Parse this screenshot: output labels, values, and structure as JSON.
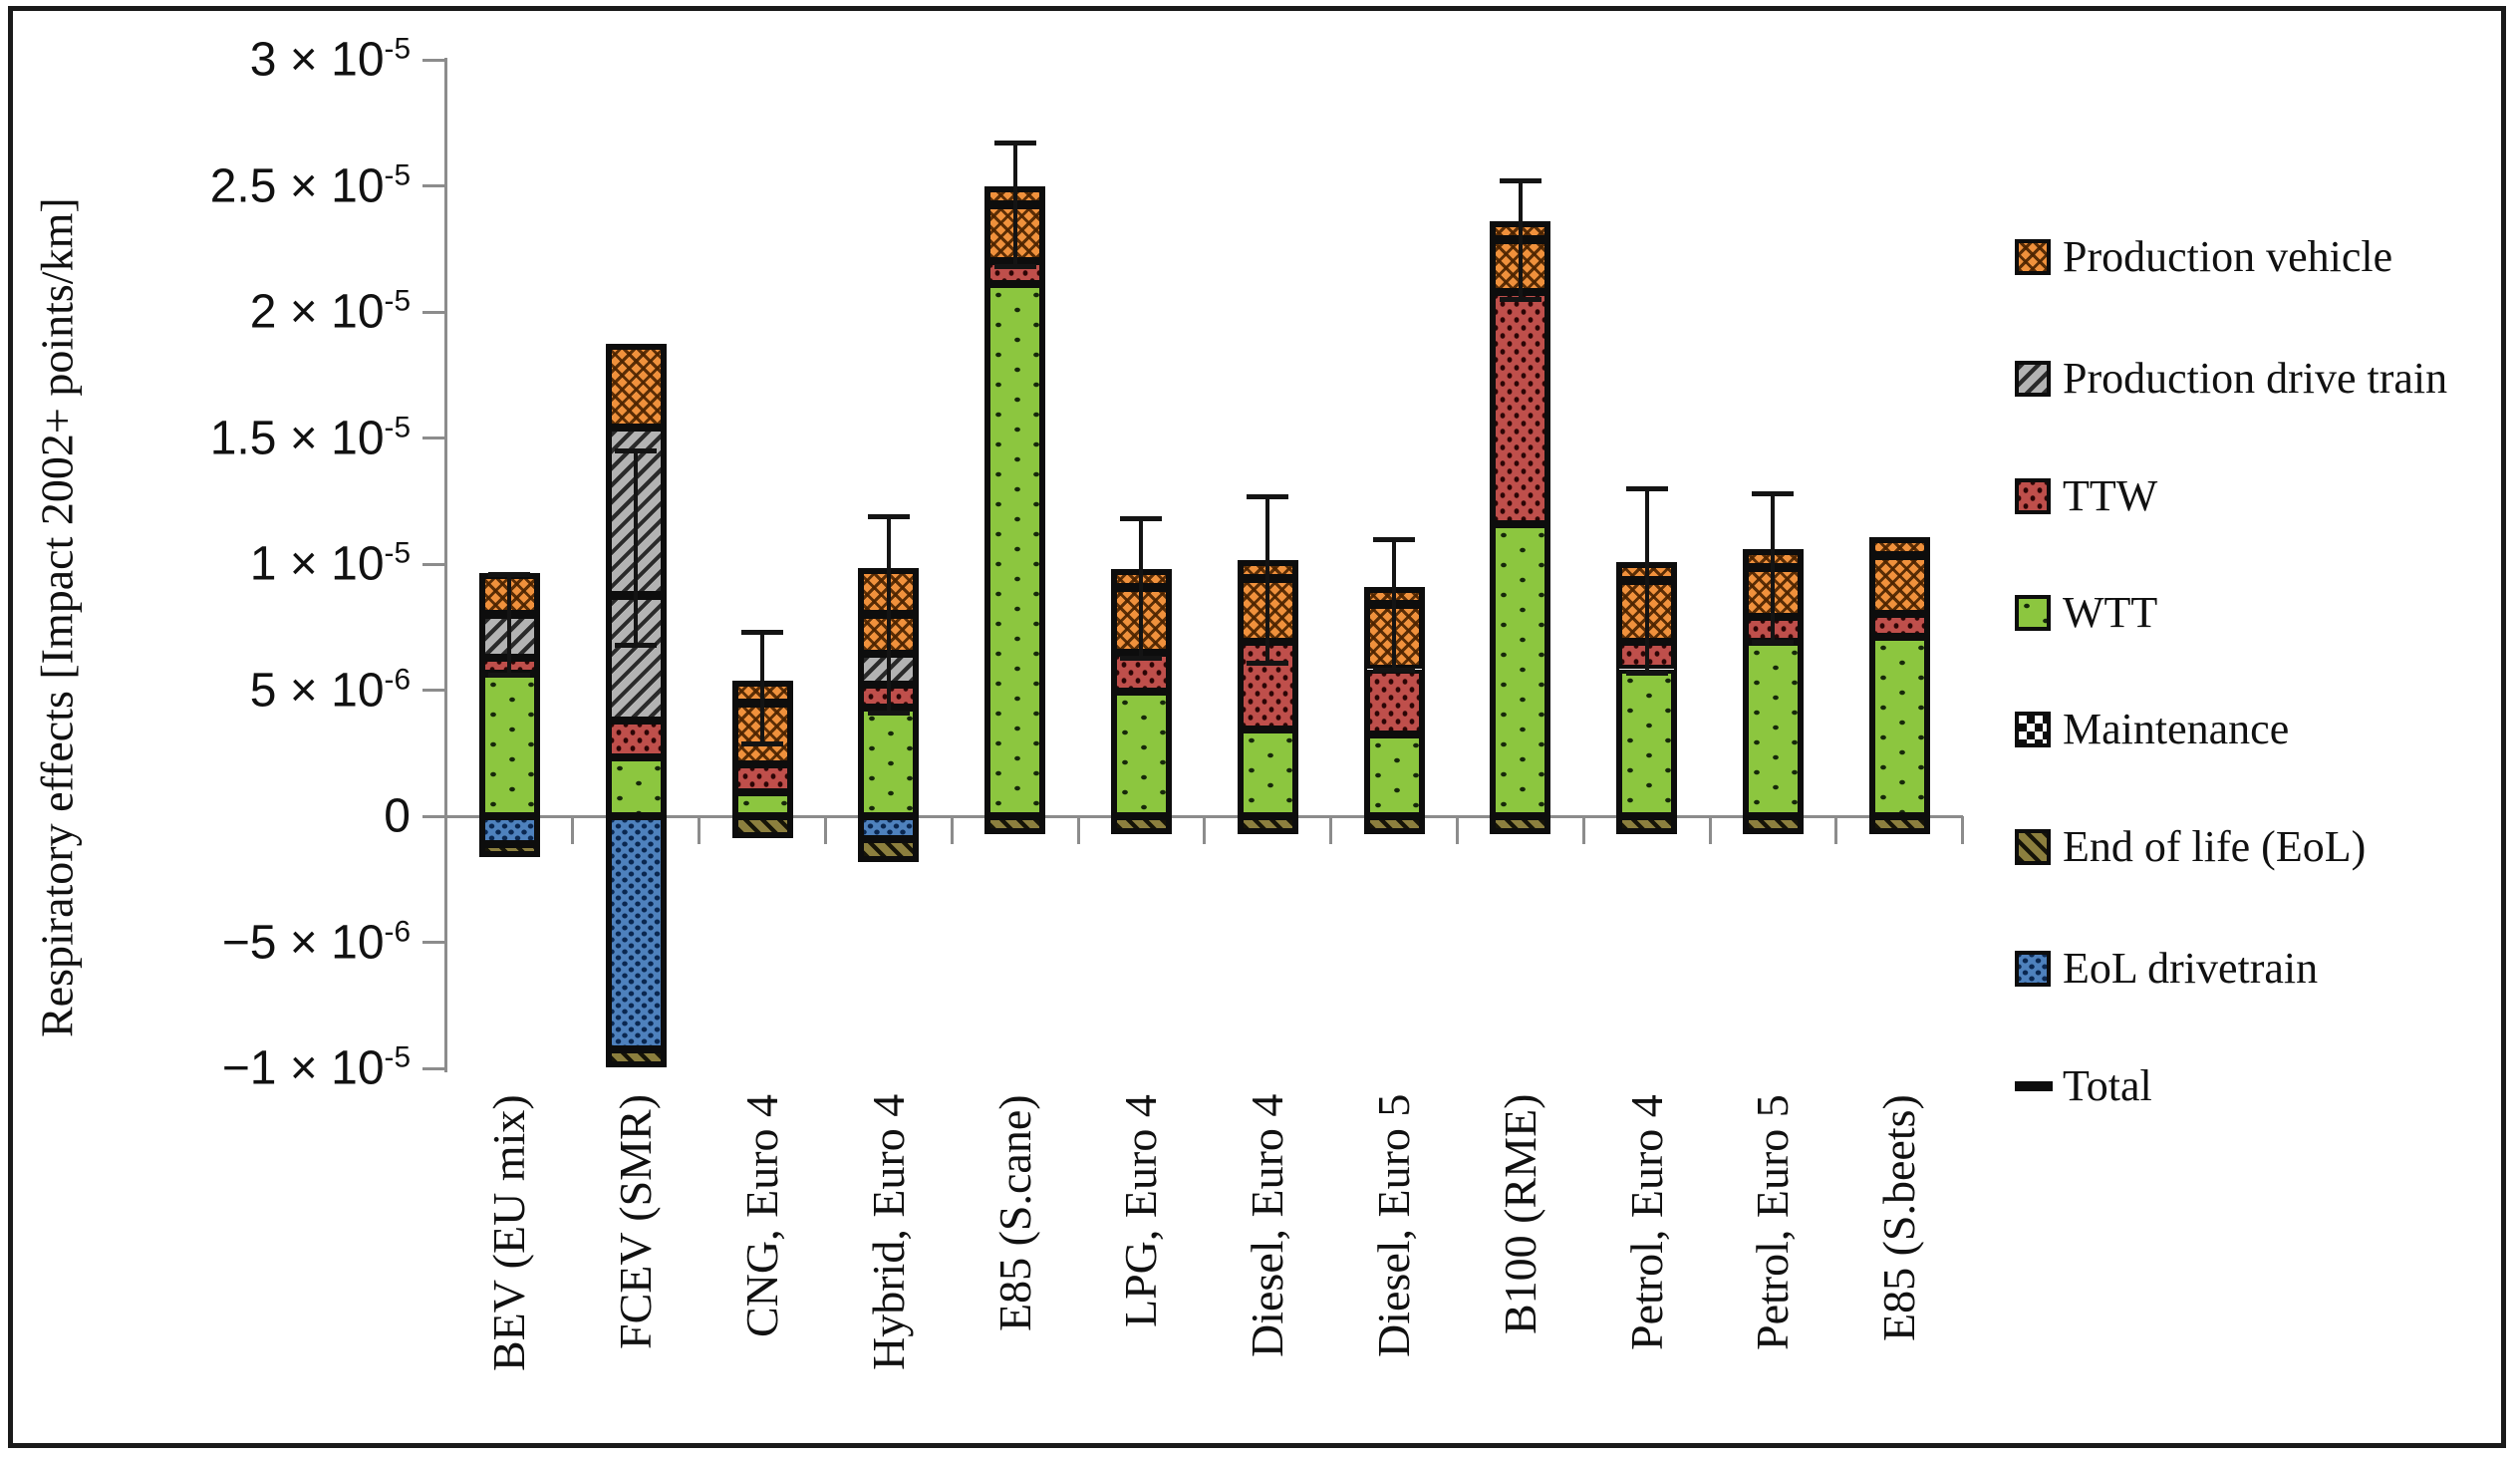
{
  "chart_data": {
    "type": "bar",
    "stacked": true,
    "title": "",
    "xlabel": "",
    "ylabel": "Respiratory effects [Impact 2002+ points/km]",
    "value_multiplier": 1e-06,
    "value_units": "Impact 2002+ points/km",
    "ylim": [
      -10,
      30
    ],
    "grid": false,
    "legend_position": "right",
    "y_ticks": [
      {
        "value": 30,
        "label": "3 × 10^-5"
      },
      {
        "value": 25,
        "label": "2.5 × 10^-5"
      },
      {
        "value": 20,
        "label": "2 × 10^-5"
      },
      {
        "value": 15,
        "label": "1.5 × 10^-5"
      },
      {
        "value": 10,
        "label": "1 × 10^-5"
      },
      {
        "value": 5,
        "label": "5 × 10^-6"
      },
      {
        "value": 0,
        "label": "0"
      },
      {
        "value": -5,
        "label": "−5 × 10^-6"
      },
      {
        "value": -10,
        "label": "−1 × 10^-5"
      }
    ],
    "categories": [
      "BEV (EU mix)",
      "FCEV (SMR)",
      "CNG, Euro 4",
      "Hybrid, Euro 4",
      "E85 (S.cane)",
      "LPG, Euro 4",
      "Diesel, Euro 4",
      "Diesel, Euro 5",
      "B100 (RME)",
      "Petrol, Euro 4",
      "Petrol, Euro 5",
      "E85 (S.beets)"
    ],
    "series": [
      {
        "key": "wtt",
        "name": "WTT",
        "color": "#8CC63F",
        "pattern": "sparse-dots",
        "values": [
          5.65,
          2.33,
          0.95,
          4.31,
          21.1,
          4.94,
          3.43,
          3.23,
          11.6,
          5.83,
          6.9,
          7.13
        ]
      },
      {
        "key": "ttw",
        "name": "TTW",
        "color": "#BF4F4B",
        "pattern": "dotted-rows",
        "values": [
          0.63,
          1.47,
          1.1,
          0.91,
          0.9,
          1.56,
          3.48,
          2.6,
          9.2,
          1.08,
          1.0,
          0.89
        ]
      },
      {
        "key": "proddrive",
        "name": "Production drive train",
        "color": "#B3B3B3",
        "pattern": "diagonal-hatch",
        "values": [
          1.72,
          11.6,
          0,
          1.22,
          0,
          0,
          0,
          0,
          0,
          0,
          0,
          0
        ]
      },
      {
        "key": "prodveh",
        "name": "Production vehicle",
        "color": "#F0913C",
        "pattern": "crosshatch-weave",
        "values": [
          1.57,
          3.26,
          3.25,
          3.32,
          2.9,
          3.24,
          3.16,
          3.2,
          2.7,
          3.09,
          2.6,
          2.95
        ]
      },
      {
        "key": "maintenance",
        "name": "Maintenance",
        "color": "#FFFFFF",
        "pattern": "checkerboard",
        "values": [
          0,
          0,
          0,
          0,
          0,
          0,
          0,
          0,
          0,
          0,
          0,
          0
        ]
      },
      {
        "key": "eoldrive",
        "name": "EoL drivetrain",
        "color": "#4E81BD",
        "pattern": "dense-dots",
        "values": [
          -1.1,
          -9.25,
          0,
          -0.9,
          0,
          0,
          0,
          0,
          0,
          0,
          0,
          0
        ]
      },
      {
        "key": "eol",
        "name": "End of life (EoL)",
        "color": "#8C7F3E",
        "pattern": "diagonal-stripes",
        "values": [
          -0.45,
          -0.65,
          -0.8,
          -0.85,
          -0.65,
          -0.65,
          -0.65,
          -0.65,
          -0.65,
          -0.65,
          -0.65,
          -0.65
        ]
      }
    ],
    "totals": [
      8.02,
      8.76,
      4.5,
      8.01,
      24.25,
      9.09,
      9.42,
      8.38,
      22.85,
      9.35,
      9.85,
      10.32
    ],
    "error_bars": {
      "low": [
        5.6,
        6.8,
        2.9,
        4.1,
        21.8,
        6.3,
        6.1,
        5.8,
        20.5,
        5.7,
        6.9,
        null
      ],
      "high": [
        9.6,
        14.5,
        7.3,
        11.9,
        26.7,
        11.8,
        12.7,
        11.0,
        25.2,
        13.0,
        12.8,
        null
      ]
    },
    "legend": [
      {
        "label": "Production vehicle",
        "swatch": "prodveh"
      },
      {
        "label": "Production drive train",
        "swatch": "proddrive"
      },
      {
        "label": "TTW",
        "swatch": "ttw"
      },
      {
        "label": "WTT",
        "swatch": "wtt"
      },
      {
        "label": "Maintenance",
        "swatch": "maintenance"
      },
      {
        "label": "End of life (EoL)",
        "swatch": "eol"
      },
      {
        "label": "EoL drivetrain",
        "swatch": "eoldrive"
      },
      {
        "label": "Total",
        "swatch": "total"
      }
    ]
  }
}
